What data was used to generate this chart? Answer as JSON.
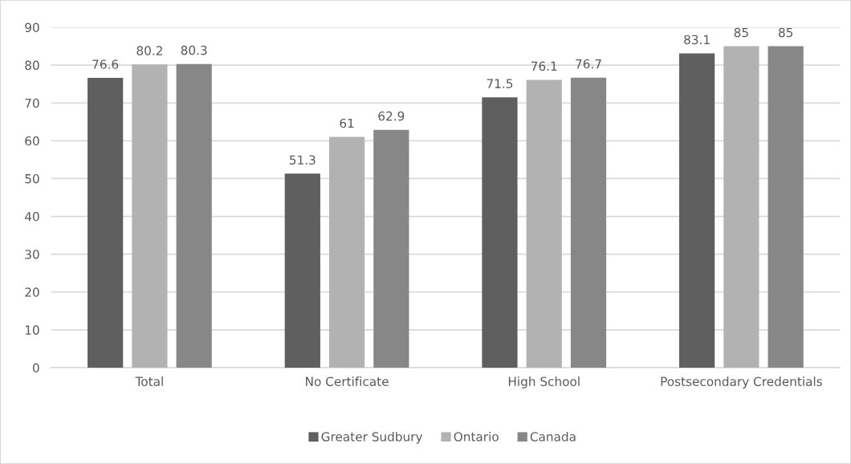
{
  "chart_data": {
    "type": "bar",
    "categories": [
      "Total",
      "No Certificate",
      "High School",
      "Postsecondary Credentials"
    ],
    "series": [
      {
        "name": "Greater Sudbury",
        "color": "#5f5f5f",
        "values": [
          76.6,
          51.3,
          71.5,
          83.1
        ]
      },
      {
        "name": "Ontario",
        "color": "#b2b2b2",
        "values": [
          80.2,
          61,
          76.1,
          85
        ]
      },
      {
        "name": "Canada",
        "color": "#878787",
        "values": [
          80.3,
          62.9,
          76.7,
          85
        ]
      }
    ],
    "ylim": [
      0,
      90
    ],
    "yticks": [
      0,
      10,
      20,
      30,
      40,
      50,
      60,
      70,
      80,
      90
    ],
    "grid": "y",
    "legend": "bottom",
    "data_labels": true
  }
}
